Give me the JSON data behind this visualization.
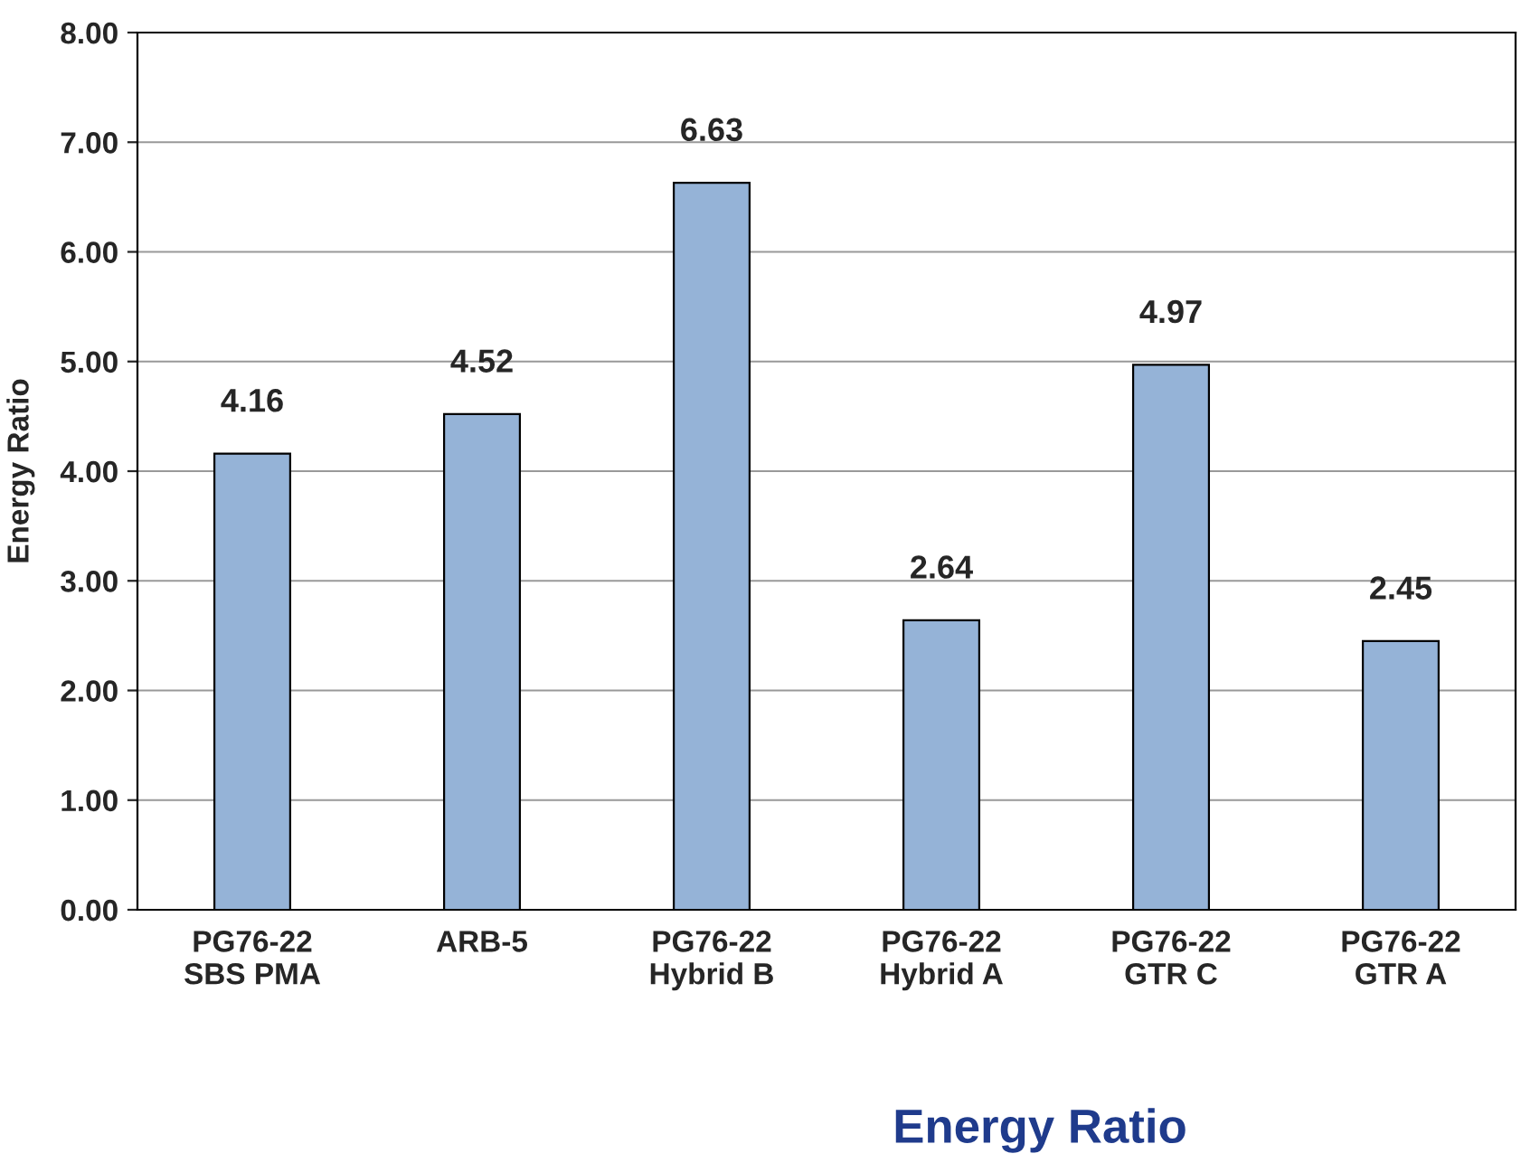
{
  "chart_data": {
    "type": "bar",
    "title": "Energy Ratio",
    "ylabel": "Energy Ratio",
    "categories": [
      "PG76-22\nSBS PMA",
      "ARB-5",
      "PG76-22\nHybrid B",
      "PG76-22\nHybrid A",
      "PG76-22\nGTR C",
      "PG76-22\nGTR A"
    ],
    "values": [
      4.16,
      4.52,
      6.63,
      2.64,
      4.97,
      2.45
    ],
    "color": "#95b3d7",
    "ylim": [
      0,
      8
    ],
    "yticks": [
      {
        "value": 0,
        "label": "0.00"
      },
      {
        "value": 1,
        "label": "1.00"
      },
      {
        "value": 2,
        "label": "2.00"
      },
      {
        "value": 3,
        "label": "3.00"
      },
      {
        "value": 4,
        "label": "4.00"
      },
      {
        "value": 5,
        "label": "5.00"
      },
      {
        "value": 6,
        "label": "6.00"
      },
      {
        "value": 7,
        "label": "7.00"
      },
      {
        "value": 8,
        "label": "8.00"
      }
    ],
    "grid": "y",
    "data_labels": true,
    "legend": false
  }
}
